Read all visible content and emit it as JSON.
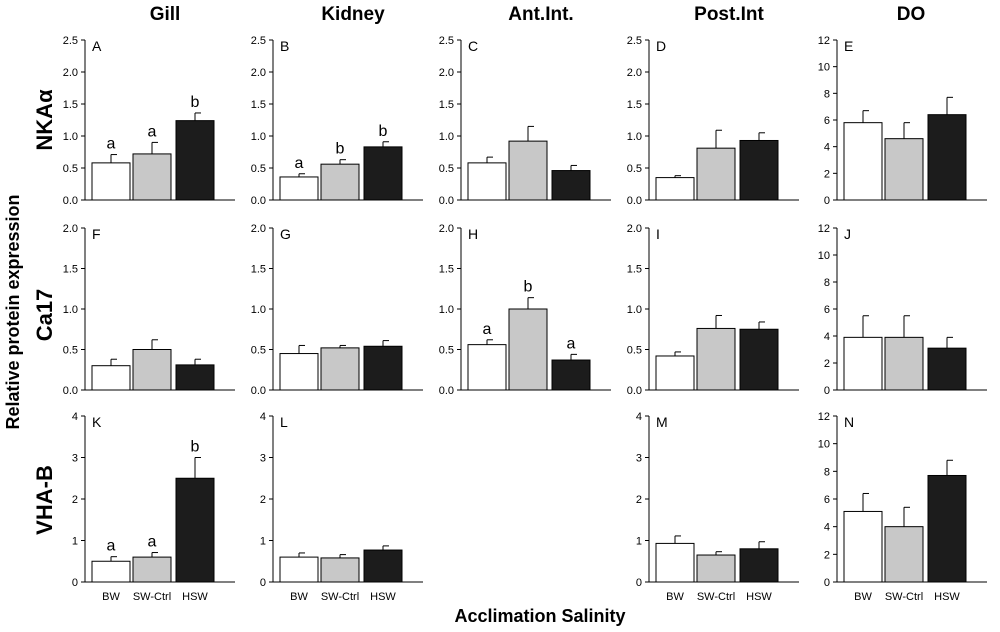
{
  "figure": {
    "x_axis_title": "Acclimation Salinity",
    "y_axis_title": "Relative protein expression",
    "column_titles": [
      "Gill",
      "Kidney",
      "Ant.Int.",
      "Post.Int",
      "DO"
    ],
    "row_titles": [
      "NKAα",
      "Ca17",
      "VHA-B"
    ],
    "categories": [
      "BW",
      "SW-Ctrl",
      "HSW"
    ],
    "bar_colors": [
      "#ffffff",
      "#c8c8c8",
      "#1c1c1c"
    ]
  },
  "chart_data": [
    {
      "type": "bar",
      "panel": "A",
      "row": 0,
      "col": 0,
      "ylim": [
        0,
        2.5
      ],
      "yticks": [
        "0.0",
        "0.5",
        "1.0",
        "1.5",
        "2.0",
        "2.5"
      ],
      "categories": [
        "BW",
        "SW-Ctrl",
        "HSW"
      ],
      "values": [
        0.58,
        0.72,
        1.24
      ],
      "errors": [
        0.13,
        0.18,
        0.12
      ],
      "sig_letters": [
        "a",
        "a",
        "b"
      ]
    },
    {
      "type": "bar",
      "panel": "B",
      "row": 0,
      "col": 1,
      "ylim": [
        0,
        2.5
      ],
      "yticks": [
        "0.0",
        "0.5",
        "1.0",
        "1.5",
        "2.0",
        "2.5"
      ],
      "categories": [
        "BW",
        "SW-Ctrl",
        "HSW"
      ],
      "values": [
        0.36,
        0.56,
        0.83
      ],
      "errors": [
        0.05,
        0.07,
        0.08
      ],
      "sig_letters": [
        "a",
        "b",
        "b"
      ]
    },
    {
      "type": "bar",
      "panel": "C",
      "row": 0,
      "col": 2,
      "ylim": [
        0,
        2.5
      ],
      "yticks": [
        "0.0",
        "0.5",
        "1.0",
        "1.5",
        "2.0",
        "2.5"
      ],
      "categories": [
        "BW",
        "SW-Ctrl",
        "HSW"
      ],
      "values": [
        0.58,
        0.92,
        0.46
      ],
      "errors": [
        0.09,
        0.23,
        0.08
      ],
      "sig_letters": [
        "",
        "",
        ""
      ]
    },
    {
      "type": "bar",
      "panel": "D",
      "row": 0,
      "col": 3,
      "ylim": [
        0,
        2.5
      ],
      "yticks": [
        "0.0",
        "0.5",
        "1.0",
        "1.5",
        "2.0",
        "2.5"
      ],
      "categories": [
        "BW",
        "SW-Ctrl",
        "HSW"
      ],
      "values": [
        0.35,
        0.81,
        0.93
      ],
      "errors": [
        0.03,
        0.28,
        0.12
      ],
      "sig_letters": [
        "",
        "",
        ""
      ]
    },
    {
      "type": "bar",
      "panel": "E",
      "row": 0,
      "col": 4,
      "ylim": [
        0,
        12
      ],
      "yticks": [
        "0",
        "2",
        "4",
        "6",
        "8",
        "10",
        "12"
      ],
      "categories": [
        "BW",
        "SW-Ctrl",
        "HSW"
      ],
      "values": [
        5.8,
        4.6,
        6.4
      ],
      "errors": [
        0.9,
        1.2,
        1.3
      ],
      "sig_letters": [
        "",
        "",
        ""
      ]
    },
    {
      "type": "bar",
      "panel": "F",
      "row": 1,
      "col": 0,
      "ylim": [
        0,
        2.0
      ],
      "yticks": [
        "0.0",
        "0.5",
        "1.0",
        "1.5",
        "2.0"
      ],
      "categories": [
        "BW",
        "SW-Ctrl",
        "HSW"
      ],
      "values": [
        0.3,
        0.5,
        0.31
      ],
      "errors": [
        0.08,
        0.12,
        0.07
      ],
      "sig_letters": [
        "",
        "",
        ""
      ]
    },
    {
      "type": "bar",
      "panel": "G",
      "row": 1,
      "col": 1,
      "ylim": [
        0,
        2.0
      ],
      "yticks": [
        "0.0",
        "0.5",
        "1.0",
        "1.5",
        "2.0"
      ],
      "categories": [
        "BW",
        "SW-Ctrl",
        "HSW"
      ],
      "values": [
        0.45,
        0.52,
        0.54
      ],
      "errors": [
        0.1,
        0.03,
        0.07
      ],
      "sig_letters": [
        "",
        "",
        ""
      ]
    },
    {
      "type": "bar",
      "panel": "H",
      "row": 1,
      "col": 2,
      "ylim": [
        0,
        2.0
      ],
      "yticks": [
        "0.0",
        "0.5",
        "1.0",
        "1.5",
        "2.0"
      ],
      "categories": [
        "BW",
        "SW-Ctrl",
        "HSW"
      ],
      "values": [
        0.56,
        1.0,
        0.37
      ],
      "errors": [
        0.06,
        0.14,
        0.07
      ],
      "sig_letters": [
        "a",
        "b",
        "a"
      ]
    },
    {
      "type": "bar",
      "panel": "I",
      "row": 1,
      "col": 3,
      "ylim": [
        0,
        2.0
      ],
      "yticks": [
        "0.0",
        "0.5",
        "1.0",
        "1.5",
        "2.0"
      ],
      "categories": [
        "BW",
        "SW-Ctrl",
        "HSW"
      ],
      "values": [
        0.42,
        0.76,
        0.75
      ],
      "errors": [
        0.05,
        0.16,
        0.09
      ],
      "sig_letters": [
        "",
        "",
        ""
      ]
    },
    {
      "type": "bar",
      "panel": "J",
      "row": 1,
      "col": 4,
      "ylim": [
        0,
        12
      ],
      "yticks": [
        "0",
        "2",
        "4",
        "6",
        "8",
        "10",
        "12"
      ],
      "categories": [
        "BW",
        "SW-Ctrl",
        "HSW"
      ],
      "values": [
        3.9,
        3.9,
        3.1
      ],
      "errors": [
        1.6,
        1.6,
        0.8
      ],
      "sig_letters": [
        "",
        "",
        ""
      ]
    },
    {
      "type": "bar",
      "panel": "K",
      "row": 2,
      "col": 0,
      "ylim": [
        0,
        4
      ],
      "yticks": [
        "0",
        "1",
        "2",
        "3",
        "4"
      ],
      "categories": [
        "BW",
        "SW-Ctrl",
        "HSW"
      ],
      "values": [
        0.5,
        0.6,
        2.5
      ],
      "errors": [
        0.11,
        0.11,
        0.5
      ],
      "sig_letters": [
        "a",
        "a",
        "b"
      ]
    },
    {
      "type": "bar",
      "panel": "L",
      "row": 2,
      "col": 1,
      "ylim": [
        0,
        4
      ],
      "yticks": [
        "0",
        "1",
        "2",
        "3",
        "4"
      ],
      "categories": [
        "BW",
        "SW-Ctrl",
        "HSW"
      ],
      "values": [
        0.6,
        0.58,
        0.77
      ],
      "errors": [
        0.1,
        0.08,
        0.1
      ],
      "sig_letters": [
        "",
        "",
        ""
      ]
    },
    {
      "type": "bar",
      "panel": "M",
      "row": 2,
      "col": 3,
      "ylim": [
        0,
        4
      ],
      "yticks": [
        "0",
        "1",
        "2",
        "3",
        "4"
      ],
      "categories": [
        "BW",
        "SW-Ctrl",
        "HSW"
      ],
      "values": [
        0.93,
        0.65,
        0.8
      ],
      "errors": [
        0.18,
        0.08,
        0.17
      ],
      "sig_letters": [
        "",
        "",
        ""
      ]
    },
    {
      "type": "bar",
      "panel": "N",
      "row": 2,
      "col": 4,
      "ylim": [
        0,
        12
      ],
      "yticks": [
        "0",
        "2",
        "4",
        "6",
        "8",
        "10",
        "12"
      ],
      "categories": [
        "BW",
        "SW-Ctrl",
        "HSW"
      ],
      "values": [
        5.1,
        4.0,
        7.7
      ],
      "errors": [
        1.3,
        1.4,
        1.1
      ],
      "sig_letters": [
        "",
        "",
        ""
      ]
    }
  ]
}
